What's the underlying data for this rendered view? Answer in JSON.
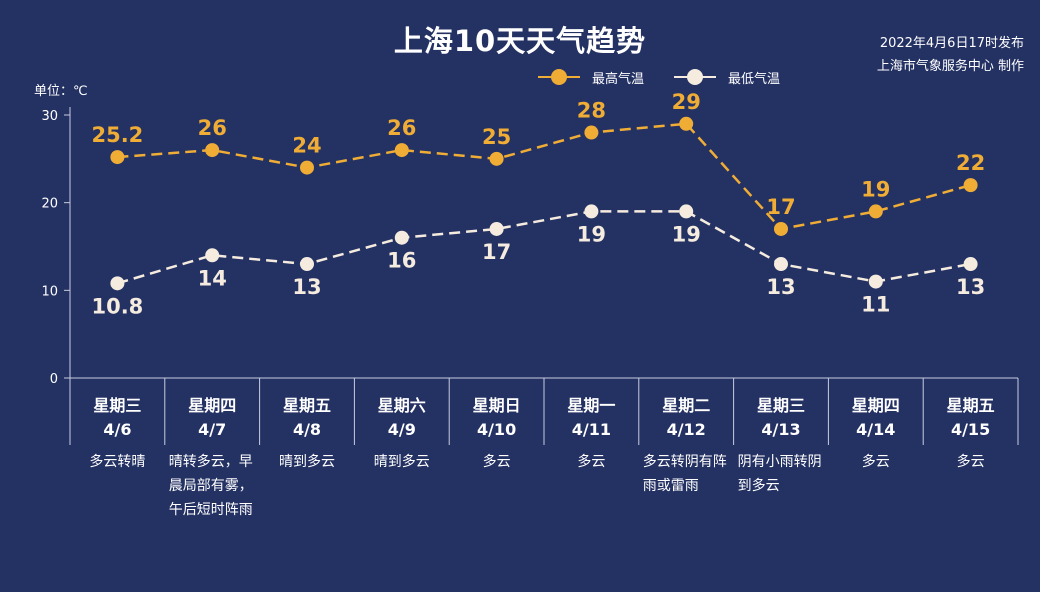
{
  "title": "上海10天天气趋势",
  "publish": {
    "line1": "2022年4月6日17时发布",
    "line2": "上海市气象服务中心 制作"
  },
  "unit_label": "单位：℃",
  "legend": {
    "high": "最高气温",
    "low": "最低气温"
  },
  "colors": {
    "background": "#243163",
    "high": "#f0ad36",
    "low": "#f5ecdf"
  },
  "days": [
    {
      "weekday": "星期三",
      "date": "4/6",
      "weather": "多云转晴"
    },
    {
      "weekday": "星期四",
      "date": "4/7",
      "weather": "晴转多云，早晨局部有雾，午后短时阵雨"
    },
    {
      "weekday": "星期五",
      "date": "4/8",
      "weather": "晴到多云"
    },
    {
      "weekday": "星期六",
      "date": "4/9",
      "weather": "晴到多云"
    },
    {
      "weekday": "星期日",
      "date": "4/10",
      "weather": "多云"
    },
    {
      "weekday": "星期一",
      "date": "4/11",
      "weather": "多云"
    },
    {
      "weekday": "星期二",
      "date": "4/12",
      "weather": "多云转阴有阵雨或雷雨"
    },
    {
      "weekday": "星期三",
      "date": "4/13",
      "weather": "阴有小雨转阴到多云"
    },
    {
      "weekday": "星期四",
      "date": "4/14",
      "weather": "多云"
    },
    {
      "weekday": "星期五",
      "date": "4/15",
      "weather": "多云"
    }
  ],
  "chart_data": {
    "type": "line",
    "title": "上海10天天气趋势",
    "ylabel": "单位：℃",
    "ylim": [
      0,
      30
    ],
    "yticks": [
      0,
      10,
      20,
      30
    ],
    "grid": false,
    "legend_position": "top-right",
    "categories": [
      "4/6",
      "4/7",
      "4/8",
      "4/9",
      "4/10",
      "4/11",
      "4/12",
      "4/13",
      "4/14",
      "4/15"
    ],
    "series": [
      {
        "name": "最高气温",
        "color": "#f0ad36",
        "values": [
          25.2,
          26,
          24,
          26,
          25,
          28,
          29,
          17,
          19,
          22
        ],
        "labels": [
          "25.2",
          "26",
          "24",
          "26",
          "25",
          "28",
          "29",
          "17",
          "19",
          "22"
        ]
      },
      {
        "name": "最低气温",
        "color": "#f5ecdf",
        "values": [
          10.8,
          14,
          13,
          16,
          17,
          19,
          19,
          13,
          11,
          13
        ],
        "labels": [
          "10.8",
          "14",
          "13",
          "16",
          "17",
          "19",
          "19",
          "13",
          "11",
          "13"
        ]
      }
    ]
  }
}
